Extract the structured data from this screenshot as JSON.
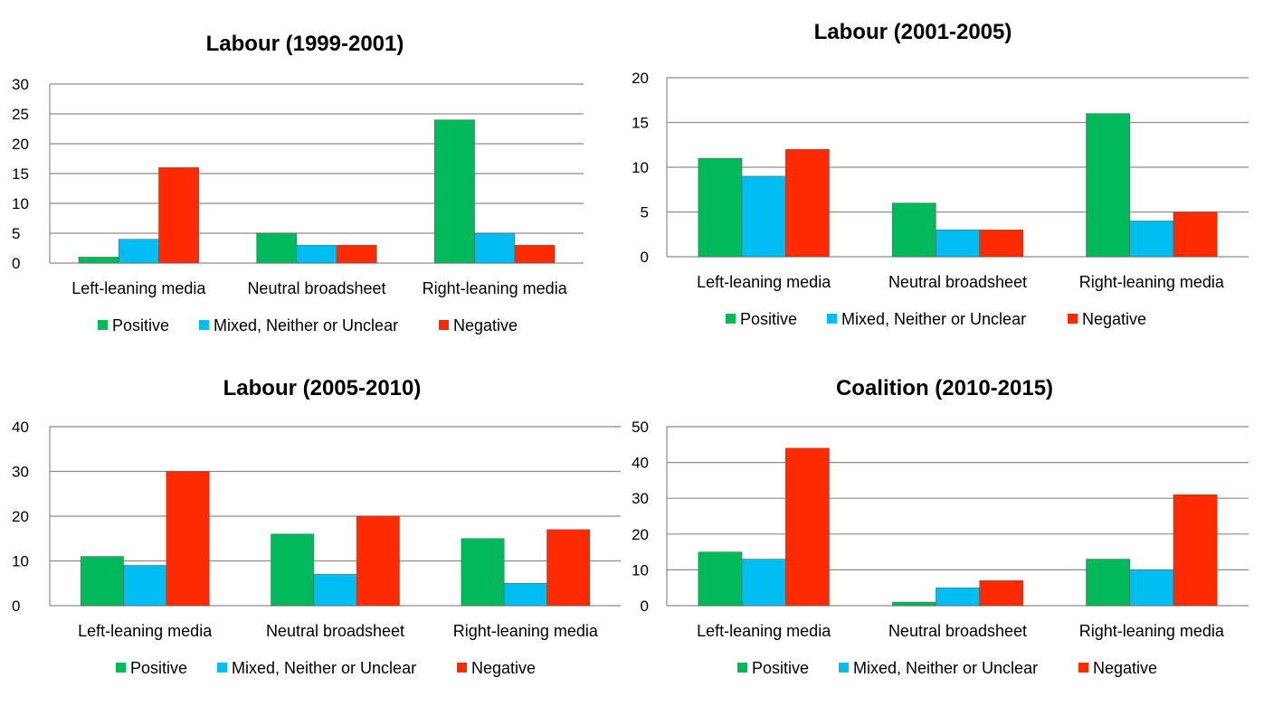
{
  "colors": {
    "positive": "#00b95a",
    "mixed": "#00bdf2",
    "negative": "#ff2a00"
  },
  "chart_data": [
    {
      "type": "bar",
      "title": "Labour (1999-2001)",
      "categories": [
        "Left-leaning media",
        "Neutral broadsheet",
        "Right-leaning media"
      ],
      "series": [
        {
          "name": "Positive",
          "values": [
            1,
            5,
            24
          ]
        },
        {
          "name": "Mixed, Neither or Unclear",
          "values": [
            4,
            3,
            5
          ]
        },
        {
          "name": "Negative",
          "values": [
            16,
            3,
            3
          ]
        }
      ],
      "ylim": [
        0,
        30
      ],
      "yticks": [
        0,
        5,
        10,
        15,
        20,
        25,
        30
      ],
      "grid": true,
      "legend": "bottom"
    },
    {
      "type": "bar",
      "title": "Labour (2001-2005)",
      "categories": [
        "Left-leaning media",
        "Neutral broadsheet",
        "Right-leaning media"
      ],
      "series": [
        {
          "name": "Positive",
          "values": [
            11,
            6,
            16
          ]
        },
        {
          "name": "Mixed, Neither or Unclear",
          "values": [
            9,
            3,
            4
          ]
        },
        {
          "name": "Negative",
          "values": [
            12,
            3,
            5
          ]
        }
      ],
      "ylim": [
        0,
        20
      ],
      "yticks": [
        0,
        5,
        10,
        15,
        20
      ],
      "grid": true,
      "legend": "bottom"
    },
    {
      "type": "bar",
      "title": "Labour (2005-2010)",
      "categories": [
        "Left-leaning media",
        "Neutral broadsheet",
        "Right-leaning media"
      ],
      "series": [
        {
          "name": "Positive",
          "values": [
            11,
            16,
            15
          ]
        },
        {
          "name": "Mixed, Neither or Unclear",
          "values": [
            9,
            7,
            5
          ]
        },
        {
          "name": "Negative",
          "values": [
            30,
            20,
            17
          ]
        }
      ],
      "ylim": [
        0,
        40
      ],
      "yticks": [
        0,
        10,
        20,
        30,
        40
      ],
      "grid": true,
      "legend": "bottom"
    },
    {
      "type": "bar",
      "title": "Coalition (2010-2015)",
      "categories": [
        "Left-leaning media",
        "Neutral broadsheet",
        "Right-leaning media"
      ],
      "series": [
        {
          "name": "Positive",
          "values": [
            15,
            1,
            13
          ]
        },
        {
          "name": "Mixed, Neither or Unclear",
          "values": [
            13,
            5,
            10
          ]
        },
        {
          "name": "Negative",
          "values": [
            44,
            7,
            31
          ]
        }
      ],
      "ylim": [
        0,
        50
      ],
      "yticks": [
        0,
        10,
        20,
        30,
        40,
        50
      ],
      "grid": true,
      "legend": "bottom"
    }
  ]
}
